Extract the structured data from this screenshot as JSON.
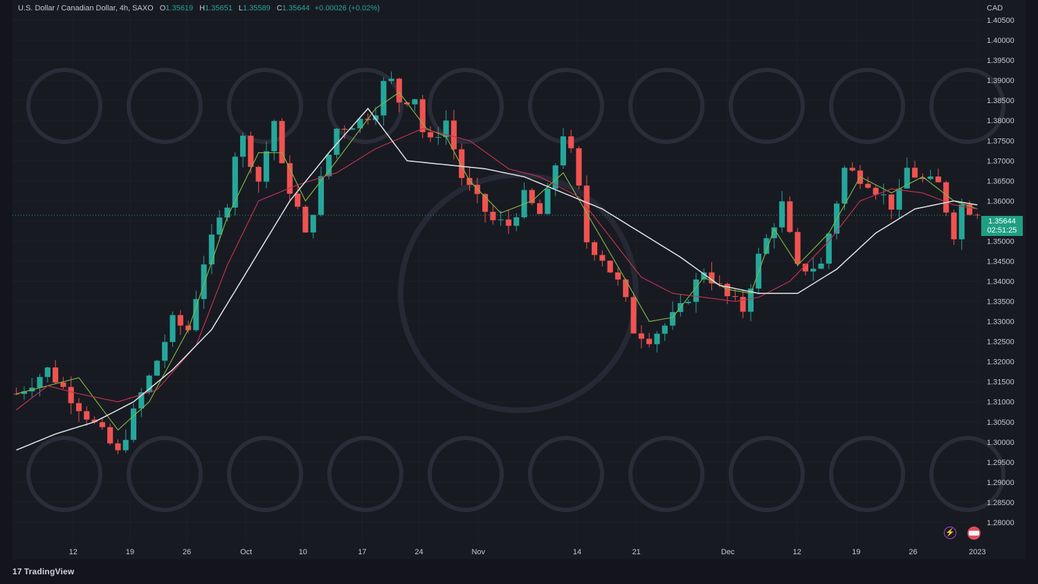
{
  "legend": {
    "symbol": "U.S. Dollar / Canadian Dollar, 4h, SAXO",
    "open_label": "O",
    "open": "1.35619",
    "high_label": "H",
    "high": "1.35651",
    "low_label": "L",
    "low": "1.35589",
    "close_label": "C",
    "close": "1.35644",
    "change": "+0.00026 (+0.02%)"
  },
  "price_axis": {
    "currency": "CAD"
  },
  "price_tag": {
    "price": "1.35644",
    "countdown": "02:51:25"
  },
  "footer": {
    "logo_text": "TradingView"
  },
  "icons": {
    "alert": "bolt-icon",
    "flag": "us-flag-icon"
  },
  "colors": {
    "background": "#14151c",
    "up": "#26a69a",
    "down": "#ef5350",
    "ma_fast": "#7fb542",
    "ma_mid": "#c2334f",
    "ma_slow": "#d8dfe2",
    "grid": "#1e2029"
  },
  "chart_data": {
    "type": "line",
    "ylim": [
      1.275,
      1.41
    ],
    "y_ticks": [
      "1.40500",
      "1.40000",
      "1.39500",
      "1.39000",
      "1.38500",
      "1.38000",
      "1.37500",
      "1.37000",
      "1.36500",
      "1.36000",
      "1.35500",
      "1.35000",
      "1.34500",
      "1.34000",
      "1.33500",
      "1.33000",
      "1.32500",
      "1.32000",
      "1.31500",
      "1.31000",
      "1.30500",
      "1.30000",
      "1.29500",
      "1.29000",
      "1.28500",
      "1.28000"
    ],
    "x_ticks": [
      "12",
      "19",
      "26",
      "Oct",
      "10",
      "17",
      "24",
      "Nov",
      "14",
      "21",
      "Dec",
      "12",
      "19",
      "26",
      "2023"
    ],
    "last_price": 1.35644,
    "price_path": {
      "name": "",
      "x": [
        0,
        4,
        8,
        11,
        13,
        16,
        17.5,
        20,
        22,
        24,
        27,
        28.5,
        31,
        33,
        34,
        36,
        37,
        39,
        41,
        44,
        46,
        47.5,
        49,
        51,
        52.5,
        55,
        57,
        59,
        61,
        63,
        65,
        67.3,
        70,
        71.5,
        73,
        75,
        77.5,
        79,
        81,
        83,
        85,
        88,
        91,
        93,
        95,
        98,
        100,
        103,
        106,
        109,
        112.5,
        114,
        116,
        118,
        120,
        121,
        123
      ],
      "values": [
        1.312,
        1.318,
        1.309,
        1.302,
        1.297,
        1.312,
        1.318,
        1.33,
        1.328,
        1.345,
        1.36,
        1.378,
        1.365,
        1.38,
        1.368,
        1.358,
        1.351,
        1.365,
        1.378,
        1.38,
        1.383,
        1.392,
        1.385,
        1.386,
        1.373,
        1.38,
        1.366,
        1.36,
        1.355,
        1.354,
        1.361,
        1.356,
        1.377,
        1.369,
        1.35,
        1.346,
        1.338,
        1.328,
        1.326,
        1.329,
        1.333,
        1.343,
        1.336,
        1.333,
        1.346,
        1.359,
        1.343,
        1.344,
        1.368,
        1.365,
        1.358,
        1.368,
        1.365,
        1.364,
        1.352,
        1.359,
        1.357
      ]
    },
    "series": [
      {
        "name": "",
        "x": [
          0,
          8,
          13,
          17,
          22,
          27,
          31,
          34,
          37,
          41,
          46,
          49,
          52.5,
          55,
          58,
          62,
          66,
          70,
          73,
          77.5,
          81,
          84,
          88,
          91,
          94,
          97,
          100,
          104,
          108,
          112,
          116,
          120,
          123
        ],
        "values": [
          1.312,
          1.316,
          1.303,
          1.31,
          1.328,
          1.356,
          1.372,
          1.372,
          1.36,
          1.37,
          1.383,
          1.387,
          1.378,
          1.376,
          1.365,
          1.357,
          1.36,
          1.367,
          1.357,
          1.342,
          1.33,
          1.331,
          1.341,
          1.338,
          1.337,
          1.353,
          1.344,
          1.352,
          1.366,
          1.362,
          1.366,
          1.36,
          1.358
        ]
      },
      {
        "name": "",
        "x": [
          0,
          4,
          8,
          13,
          18,
          23,
          27,
          31,
          36,
          41,
          46,
          52,
          58,
          63,
          67,
          72,
          76,
          80,
          84,
          88,
          92,
          95,
          99,
          104,
          108,
          112,
          116,
          120,
          123
        ],
        "values": [
          1.308,
          1.314,
          1.312,
          1.31,
          1.313,
          1.324,
          1.344,
          1.36,
          1.364,
          1.367,
          1.373,
          1.378,
          1.375,
          1.368,
          1.366,
          1.361,
          1.351,
          1.341,
          1.337,
          1.336,
          1.335,
          1.336,
          1.34,
          1.35,
          1.36,
          1.363,
          1.362,
          1.359,
          1.358
        ]
      },
      {
        "name": "",
        "x": [
          0,
          5,
          10,
          15,
          20,
          25,
          30,
          35,
          40,
          45,
          50,
          55,
          60,
          65,
          70,
          75,
          80,
          85,
          90,
          95,
          100,
          105,
          110,
          115,
          120,
          123
        ],
        "values": [
          1.298,
          1.302,
          1.305,
          1.31,
          1.318,
          1.328,
          1.344,
          1.36,
          1.372,
          1.383,
          1.37,
          1.369,
          1.368,
          1.366,
          1.362,
          1.358,
          1.352,
          1.346,
          1.339,
          1.337,
          1.337,
          1.343,
          1.352,
          1.358,
          1.36,
          1.359
        ]
      }
    ]
  }
}
